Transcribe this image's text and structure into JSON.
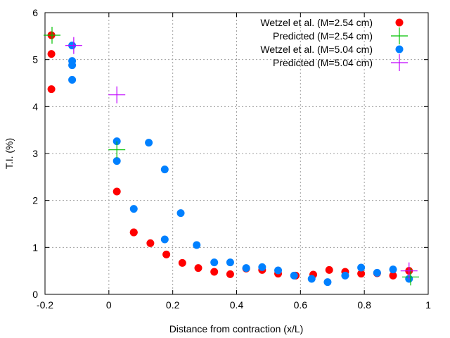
{
  "chart_data": {
    "type": "scatter",
    "xlabel": "Distance from contraction (x/L)",
    "ylabel": "T.I. (%)",
    "xlim": [
      -0.2,
      1.0
    ],
    "ylim": [
      0,
      6
    ],
    "xticks": [
      "-0.2",
      "0",
      "0.2",
      "0.4",
      "0.6",
      "0.8",
      "1"
    ],
    "yticks": [
      "0",
      "1",
      "2",
      "3",
      "4",
      "5",
      "6"
    ],
    "xtick_values": [
      -0.2,
      0,
      0.2,
      0.4,
      0.6,
      0.8,
      1.0
    ],
    "ytick_values": [
      0,
      1,
      2,
      3,
      4,
      5,
      6
    ],
    "grid": true,
    "legend_position": "top-right",
    "series": [
      {
        "name": "Wetzel et al. (M=2.54 cm)",
        "marker": "filled-circle",
        "color": "#ff0000",
        "x": [
          -0.18,
          -0.18,
          -0.18,
          0.025,
          0.078,
          0.078,
          0.13,
          0.18,
          0.23,
          0.28,
          0.33,
          0.38,
          0.43,
          0.48,
          0.53,
          0.585,
          0.64,
          0.69,
          0.74,
          0.79,
          0.84,
          0.89,
          0.94
        ],
        "y": [
          5.52,
          5.12,
          4.37,
          2.19,
          1.32,
          1.32,
          1.09,
          0.85,
          0.67,
          0.56,
          0.48,
          0.43,
          0.55,
          0.52,
          0.44,
          0.4,
          0.42,
          0.52,
          0.48,
          0.44,
          0.45,
          0.4,
          0.5
        ]
      },
      {
        "name": "Predicted (M=2.54 cm)",
        "marker": "plus",
        "color": "#00c000",
        "x": [
          -0.178,
          0.025,
          0.945
        ],
        "y": [
          5.52,
          3.08,
          0.37
        ]
      },
      {
        "name": "Wetzel et al. (M=5.04 cm)",
        "marker": "filled-circle",
        "color": "#0080ff",
        "x": [
          -0.115,
          -0.115,
          -0.115,
          -0.115,
          0.025,
          0.025,
          0.078,
          0.125,
          0.175,
          0.175,
          0.225,
          0.275,
          0.33,
          0.38,
          0.43,
          0.48,
          0.53,
          0.58,
          0.635,
          0.685,
          0.74,
          0.79,
          0.84,
          0.89,
          0.94
        ],
        "y": [
          5.3,
          4.97,
          4.88,
          4.57,
          3.26,
          2.84,
          1.82,
          3.23,
          2.66,
          1.17,
          1.73,
          1.05,
          0.68,
          0.68,
          0.56,
          0.58,
          0.51,
          0.4,
          0.33,
          0.26,
          0.4,
          0.57,
          0.46,
          0.53,
          0.33
        ]
      },
      {
        "name": "Predicted (M=5.04 cm)",
        "marker": "plus",
        "color": "#c000ff",
        "x": [
          -0.11,
          0.025,
          0.94
        ],
        "y": [
          5.3,
          4.25,
          0.5
        ]
      }
    ]
  }
}
